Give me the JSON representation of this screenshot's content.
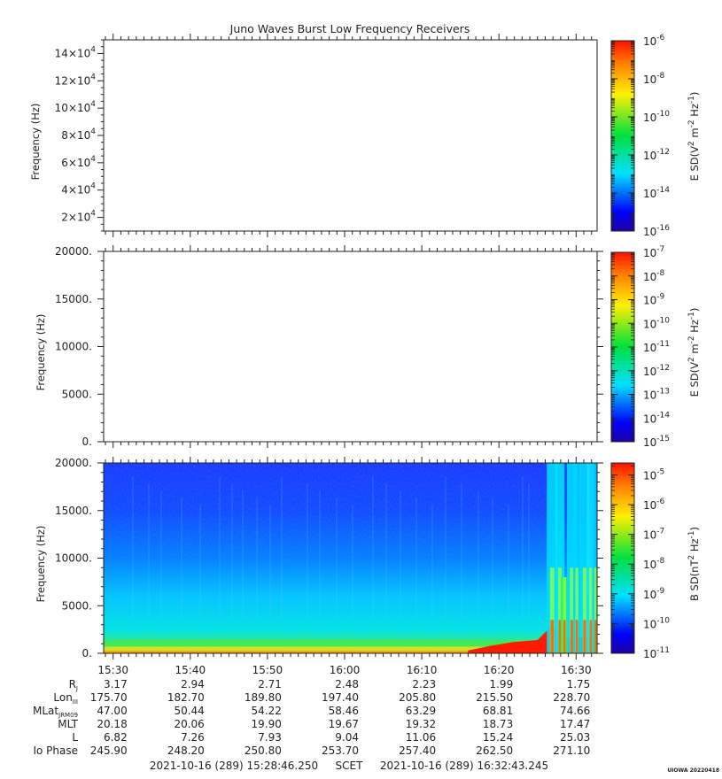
{
  "title": "Juno Waves Burst Low Frequency Receivers",
  "colors": {
    "background": "#ffffff",
    "axis": "#222222",
    "spectrogram_base": "#1e3cff"
  },
  "footer": {
    "start": "2021-10-16 (289) 15:28:46.250",
    "scet": "SCET",
    "end": "2021-10-16 (289) 16:32:43.245",
    "credit": "UIOWA 20220418"
  },
  "chart_data": [
    {
      "type": "heatmap",
      "ylabel": "Frequency (Hz)",
      "yticks": [
        "2×10⁴",
        "4×10⁴",
        "6×10⁴",
        "8×10⁴",
        "10×10⁴",
        "12×10⁴",
        "14×10⁴"
      ],
      "yticks_base": [
        "2×10",
        "4×10",
        "6×10",
        "8×10",
        "10×10",
        "12×10",
        "14×10"
      ],
      "yticks_exp": [
        "4",
        "4",
        "4",
        "4",
        "4",
        "4",
        "4"
      ],
      "ytick_values": [
        20000,
        40000,
        60000,
        80000,
        100000,
        120000,
        140000
      ],
      "ylim": [
        10000,
        150000
      ],
      "data": "empty",
      "colorbar": {
        "label": "E SD (V² m⁻² Hz⁻¹)",
        "label_main": "E SD(V",
        "label_unit1": "m",
        "label_unit2": "Hz",
        "label_exp1": "2",
        "label_exp2": "-2",
        "label_exp3": "-1",
        "range": [
          -16,
          -6
        ],
        "ticks": [
          "10⁻⁶",
          "10⁻⁸",
          "10⁻¹⁰",
          "10⁻¹²",
          "10⁻¹⁴",
          "10⁻¹⁶"
        ],
        "tick_exp": [
          -6,
          -8,
          -10,
          -12,
          -14,
          -16
        ],
        "tick_exp_text": [
          "-6",
          "-8",
          "-10",
          "-12",
          "-14",
          "-16"
        ]
      }
    },
    {
      "type": "heatmap",
      "ylabel": "Frequency (Hz)",
      "yticks": [
        "0.",
        "5000.",
        "10000.",
        "15000.",
        "20000."
      ],
      "ytick_values": [
        0,
        5000,
        10000,
        15000,
        20000
      ],
      "ylim": [
        0,
        20000
      ],
      "data": "empty",
      "colorbar": {
        "label": "E SD (V² m⁻² Hz⁻¹)",
        "label_main": "E SD(V",
        "label_unit1": "m",
        "label_unit2": "Hz",
        "label_exp1": "2",
        "label_exp2": "-2",
        "label_exp3": "-1",
        "range": [
          -15,
          -7
        ],
        "ticks": [
          "10⁻⁷",
          "10⁻⁸",
          "10⁻⁹",
          "10⁻¹⁰",
          "10⁻¹¹",
          "10⁻¹²",
          "10⁻¹³",
          "10⁻¹⁴",
          "10⁻¹⁵"
        ],
        "tick_exp": [
          -7,
          -8,
          -9,
          -10,
          -11,
          -12,
          -13,
          -14,
          -15
        ],
        "tick_exp_text": [
          "-7",
          "-8",
          "-9",
          "-10",
          "-11",
          "-12",
          "-13",
          "-14",
          "-15"
        ]
      }
    },
    {
      "type": "heatmap",
      "ylabel": "Frequency (Hz)",
      "yticks": [
        "0.",
        "5000.",
        "10000.",
        "15000.",
        "20000."
      ],
      "ytick_values": [
        0,
        5000,
        10000,
        15000,
        20000
      ],
      "ylim": [
        0,
        20000
      ],
      "data": "magnetic spectrogram: intense emission below ~1000 Hz rising in intensity after 16:18; broadband bursts 16:26-16:32",
      "colorbar": {
        "label": "B SD (nT² Hz⁻¹)",
        "label_main": "B SD(nT",
        "label_unit1": "Hz",
        "label_exp1": "2",
        "label_exp2": "-1",
        "range": [
          -11,
          -4.6
        ],
        "ticks": [
          "10⁻⁵",
          "10⁻⁶",
          "10⁻⁷",
          "10⁻⁸",
          "10⁻⁹",
          "10⁻¹⁰",
          "10⁻¹¹"
        ],
        "tick_exp": [
          -5,
          -6,
          -7,
          -8,
          -9,
          -10,
          -11
        ],
        "tick_exp_text": [
          "-5",
          "-6",
          "-7",
          "-8",
          "-9",
          "-10",
          "-11"
        ]
      }
    }
  ],
  "time_axis": {
    "range_minutes": [
      928.77,
      992.72
    ],
    "ticks": [
      {
        "label": "15:30",
        "minute": 930
      },
      {
        "label": "15:40",
        "minute": 940
      },
      {
        "label": "15:50",
        "minute": 950
      },
      {
        "label": "16:00",
        "minute": 960
      },
      {
        "label": "16:10",
        "minute": 970
      },
      {
        "label": "16:20",
        "minute": 980
      },
      {
        "label": "16:30",
        "minute": 990
      }
    ]
  },
  "ephemeris": [
    {
      "label": "R",
      "sub": "J",
      "values": [
        "3.17",
        "2.94",
        "2.71",
        "2.48",
        "2.23",
        "1.99",
        "1.75"
      ]
    },
    {
      "label": "Lon",
      "sub": "III",
      "values": [
        "175.70",
        "182.70",
        "189.80",
        "197.40",
        "205.80",
        "215.50",
        "228.70"
      ]
    },
    {
      "label": "MLat",
      "sub": "JRM09",
      "values": [
        "47.00",
        "50.44",
        "54.22",
        "58.46",
        "63.29",
        "68.81",
        "74.66"
      ]
    },
    {
      "label": "MLT",
      "sub": "",
      "values": [
        "20.18",
        "20.06",
        "19.90",
        "19.67",
        "19.32",
        "18.73",
        "17.47"
      ]
    },
    {
      "label": "L",
      "sub": "",
      "values": [
        "6.82",
        "7.26",
        "7.93",
        "9.04",
        "11.06",
        "15.24",
        "25.03"
      ]
    },
    {
      "label": "Io Phase",
      "sub": "",
      "values": [
        "245.90",
        "248.20",
        "250.80",
        "253.70",
        "257.40",
        "262.50",
        "271.10"
      ]
    }
  ]
}
